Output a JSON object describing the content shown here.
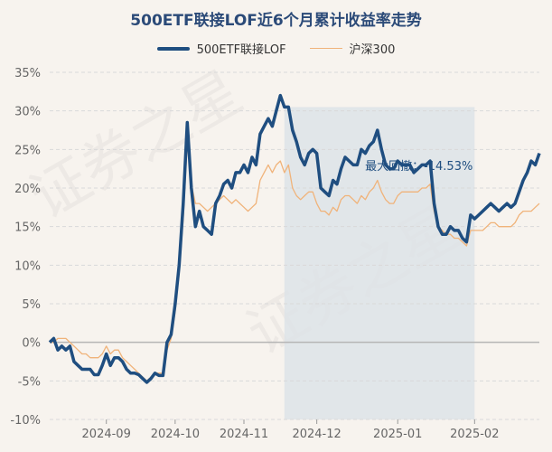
{
  "chart_data": {
    "type": "line",
    "title": "500ETF联接LOF近6个月累计收益率走势",
    "x_tick_labels": [
      "2024-09",
      "2024-10",
      "2024-11",
      "2024-12",
      "2025-01",
      "2025-02"
    ],
    "y_tick_labels": [
      "35%",
      "30%",
      "25%",
      "20%",
      "15%",
      "10%",
      "5%",
      "0%",
      "-5%",
      "-10%"
    ],
    "ylim": [
      -10,
      35
    ],
    "grid": true,
    "legend_position": "top-center",
    "annotation": "最大回撤：-14.53%",
    "series": [
      {
        "name": "500ETF联接LOF",
        "color": "#1f4e80",
        "values": [
          0,
          0.5,
          -1,
          -0.5,
          -1,
          -0.5,
          -2.5,
          -3,
          -3.5,
          -3.5,
          -3.5,
          -4.2,
          -4.2,
          -3,
          -1.5,
          -3,
          -2,
          -2,
          -2.5,
          -3.5,
          -4,
          -4,
          -4.2,
          -4.7,
          -5.2,
          -4.7,
          -4,
          -4.3,
          -4.3,
          0,
          1,
          5,
          10,
          18,
          28.5,
          20,
          15,
          17,
          15,
          14.5,
          14,
          18,
          19,
          20.5,
          21,
          20,
          22,
          22,
          23,
          22,
          24,
          23,
          27,
          28,
          29,
          28,
          30,
          32,
          30.5,
          30.5,
          27.5,
          26,
          24,
          23,
          24.5,
          25,
          24.5,
          20,
          19.5,
          19,
          21,
          20.5,
          22.5,
          24,
          23.5,
          23,
          23,
          25,
          24.5,
          25.5,
          26,
          27.5,
          25,
          23,
          22.5,
          22.5,
          23.5,
          23,
          23,
          23,
          22,
          22.5,
          23,
          23,
          23.5,
          18,
          15,
          14,
          14,
          15,
          14.5,
          14.5,
          13.5,
          13,
          16.5,
          16,
          16.5,
          17,
          17.5,
          18,
          17.5,
          17,
          17.5,
          18,
          17.5,
          18,
          19.5,
          21,
          22,
          23.5,
          23,
          24.5
        ]
      },
      {
        "name": "沪深300",
        "color": "#f0b37a",
        "values": [
          0,
          0,
          0.5,
          0.5,
          0.5,
          0,
          -0.5,
          -1,
          -1.5,
          -1.5,
          -2,
          -2,
          -2,
          -1.5,
          -0.5,
          -1.5,
          -1,
          -1,
          -2,
          -2.5,
          -3,
          -3.5,
          -4,
          -4.5,
          -5,
          -4.5,
          -4,
          -4,
          -4,
          -1,
          0.5,
          4,
          9,
          16,
          26,
          20.5,
          18,
          18,
          17.5,
          17,
          17.5,
          18,
          18.5,
          19,
          18.5,
          18,
          18.5,
          18,
          17.5,
          17,
          17.5,
          18,
          21,
          22,
          23,
          22,
          23,
          23.5,
          22,
          23,
          20,
          19,
          18.5,
          19,
          19.5,
          19.5,
          18,
          17,
          17,
          16.5,
          17.5,
          17,
          18.5,
          19,
          19,
          18.5,
          18,
          19,
          18.5,
          19.5,
          20,
          21,
          19.5,
          18.5,
          18,
          18,
          19,
          19.5,
          19.5,
          19.5,
          19.5,
          19.5,
          20,
          20,
          20.5,
          17,
          15,
          14.5,
          14,
          14,
          13.5,
          13.5,
          13,
          12.5,
          14.5,
          14.5,
          14.5,
          14.5,
          15,
          15.5,
          15.5,
          15,
          15,
          15,
          15,
          15.5,
          16.5,
          17,
          17,
          17,
          17.5,
          18
        ]
      }
    ],
    "max_drawdown_period": {
      "start_index": 58,
      "end_index": 105
    }
  }
}
